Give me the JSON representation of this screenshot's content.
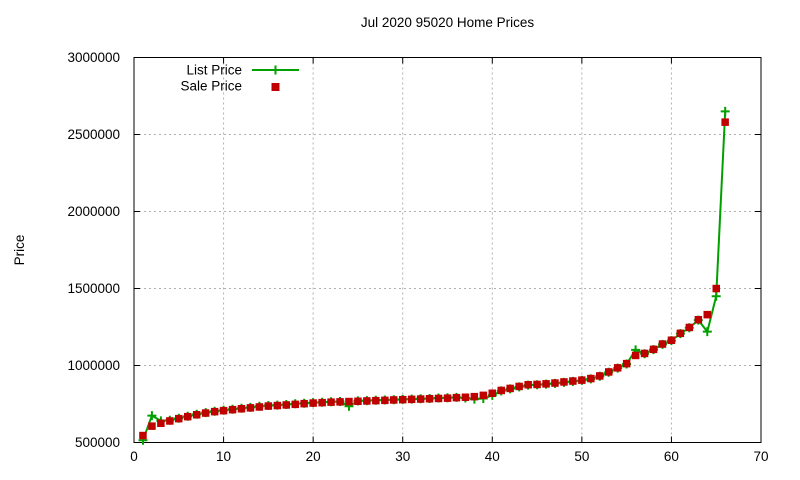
{
  "chart_data": {
    "type": "scatter",
    "title": "Jul 2020 95020 Home Prices",
    "xlabel": "",
    "ylabel": "Price",
    "xlim": [
      0,
      70
    ],
    "ylim": [
      500000,
      3000000
    ],
    "x_ticks": [
      0,
      10,
      20,
      30,
      40,
      50,
      60,
      70
    ],
    "y_ticks": [
      500000,
      1000000,
      1500000,
      2000000,
      2500000,
      3000000
    ],
    "grid": true,
    "grid_color": "#b0b0b0",
    "legend_position": "top-left-inside",
    "x": [
      1,
      2,
      3,
      4,
      5,
      6,
      7,
      8,
      9,
      10,
      11,
      12,
      13,
      14,
      15,
      16,
      17,
      18,
      19,
      20,
      21,
      22,
      23,
      24,
      25,
      26,
      27,
      28,
      29,
      30,
      31,
      32,
      33,
      34,
      35,
      36,
      37,
      38,
      39,
      40,
      41,
      42,
      43,
      44,
      45,
      46,
      47,
      48,
      49,
      50,
      51,
      52,
      53,
      54,
      55,
      56,
      57,
      58,
      59,
      60,
      61,
      62,
      63,
      64,
      65,
      66
    ],
    "series": [
      {
        "name": "List Price",
        "color": "#00a000",
        "marker": "plus",
        "line": true,
        "values": [
          515000,
          675000,
          640000,
          645000,
          658000,
          671000,
          683000,
          694000,
          703000,
          710000,
          716000,
          722000,
          728000,
          735000,
          740000,
          743000,
          747000,
          751000,
          755000,
          759000,
          762000,
          764000,
          766000,
          735000,
          770000,
          772000,
          774000,
          776000,
          778000,
          780000,
          782000,
          784000,
          786000,
          789000,
          791000,
          793000,
          789000,
          782000,
          786000,
          806000,
          835000,
          848000,
          861000,
          873000,
          875000,
          879000,
          884000,
          890000,
          897000,
          903000,
          913000,
          930000,
          956000,
          983000,
          1010000,
          1101000,
          1076000,
          1103000,
          1137000,
          1162000,
          1207000,
          1245000,
          1295000,
          1220000,
          1450000,
          2650000
        ]
      },
      {
        "name": "Sale Price",
        "color": "#c00000",
        "marker": "square",
        "line": false,
        "values": [
          545000,
          606000,
          625000,
          640000,
          655000,
          668000,
          680000,
          691000,
          700000,
          707000,
          713000,
          719000,
          725000,
          731000,
          737000,
          740000,
          744000,
          748000,
          752000,
          756000,
          759000,
          762000,
          764000,
          766000,
          768000,
          770000,
          772000,
          774000,
          776000,
          778000,
          780000,
          782000,
          784000,
          786000,
          788000,
          791000,
          794000,
          798000,
          806000,
          820000,
          838000,
          851000,
          864000,
          875000,
          877000,
          881000,
          886000,
          893000,
          899000,
          905000,
          915000,
          932000,
          958000,
          985000,
          1012000,
          1065000,
          1078000,
          1105000,
          1139000,
          1164000,
          1209000,
          1247000,
          1297000,
          1330000,
          1500000,
          2580000
        ]
      }
    ]
  }
}
